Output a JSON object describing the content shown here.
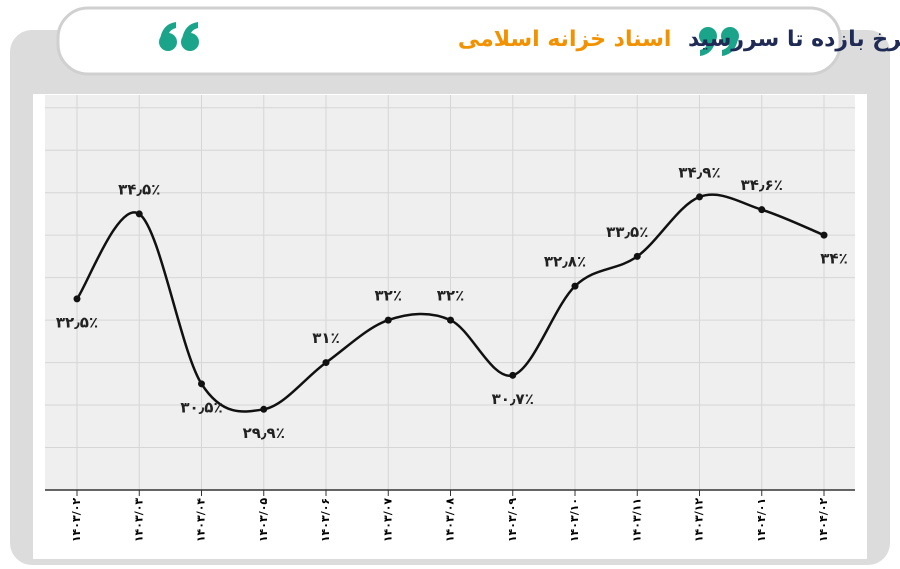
{
  "chart_data": {
    "type": "line",
    "title_parts": [
      "نرخ بازده تا سررسید",
      "اسناد خزانه اسلامی"
    ],
    "title_colors": [
      "#1f2a55",
      "#f39200"
    ],
    "categories": [
      "۱۴۰۳/۰۲",
      "۱۴۰۳/۰۳",
      "۱۴۰۳/۰۴",
      "۱۴۰۳/۰۵",
      "۱۴۰۳/۰۶",
      "۱۴۰۳/۰۷",
      "۱۴۰۳/۰۸",
      "۱۴۰۳/۰۹",
      "۱۴۰۳/۱۰",
      "۱۴۰۳/۱۱",
      "۱۴۰۳/۱۲",
      "۱۴۰۴/۰۱",
      "۱۴۰۴/۰۲"
    ],
    "values": [
      32.5,
      34.5,
      30.5,
      29.9,
      31,
      32,
      32,
      30.7,
      32.8,
      33.5,
      34.9,
      34.6,
      34
    ],
    "value_labels": [
      "۳۲٫۵٪",
      "۳۴٫۵٪",
      "۳۰٫۵٪",
      "۲۹٫۹٪",
      "۳۱٪",
      "۳۲٪",
      "۳۲٪",
      "۳۰٫۷٪",
      "۳۲٫۸٪",
      "۳۳٫۵٪",
      "۳۴٫۹٪",
      "۳۴٫۶٪",
      "۳۴٪"
    ],
    "color": "#111111",
    "ylim": [
      28,
      37.3
    ],
    "yticks": [
      28,
      29,
      30,
      31,
      32,
      33,
      34,
      35,
      36,
      37
    ],
    "grid": true
  }
}
